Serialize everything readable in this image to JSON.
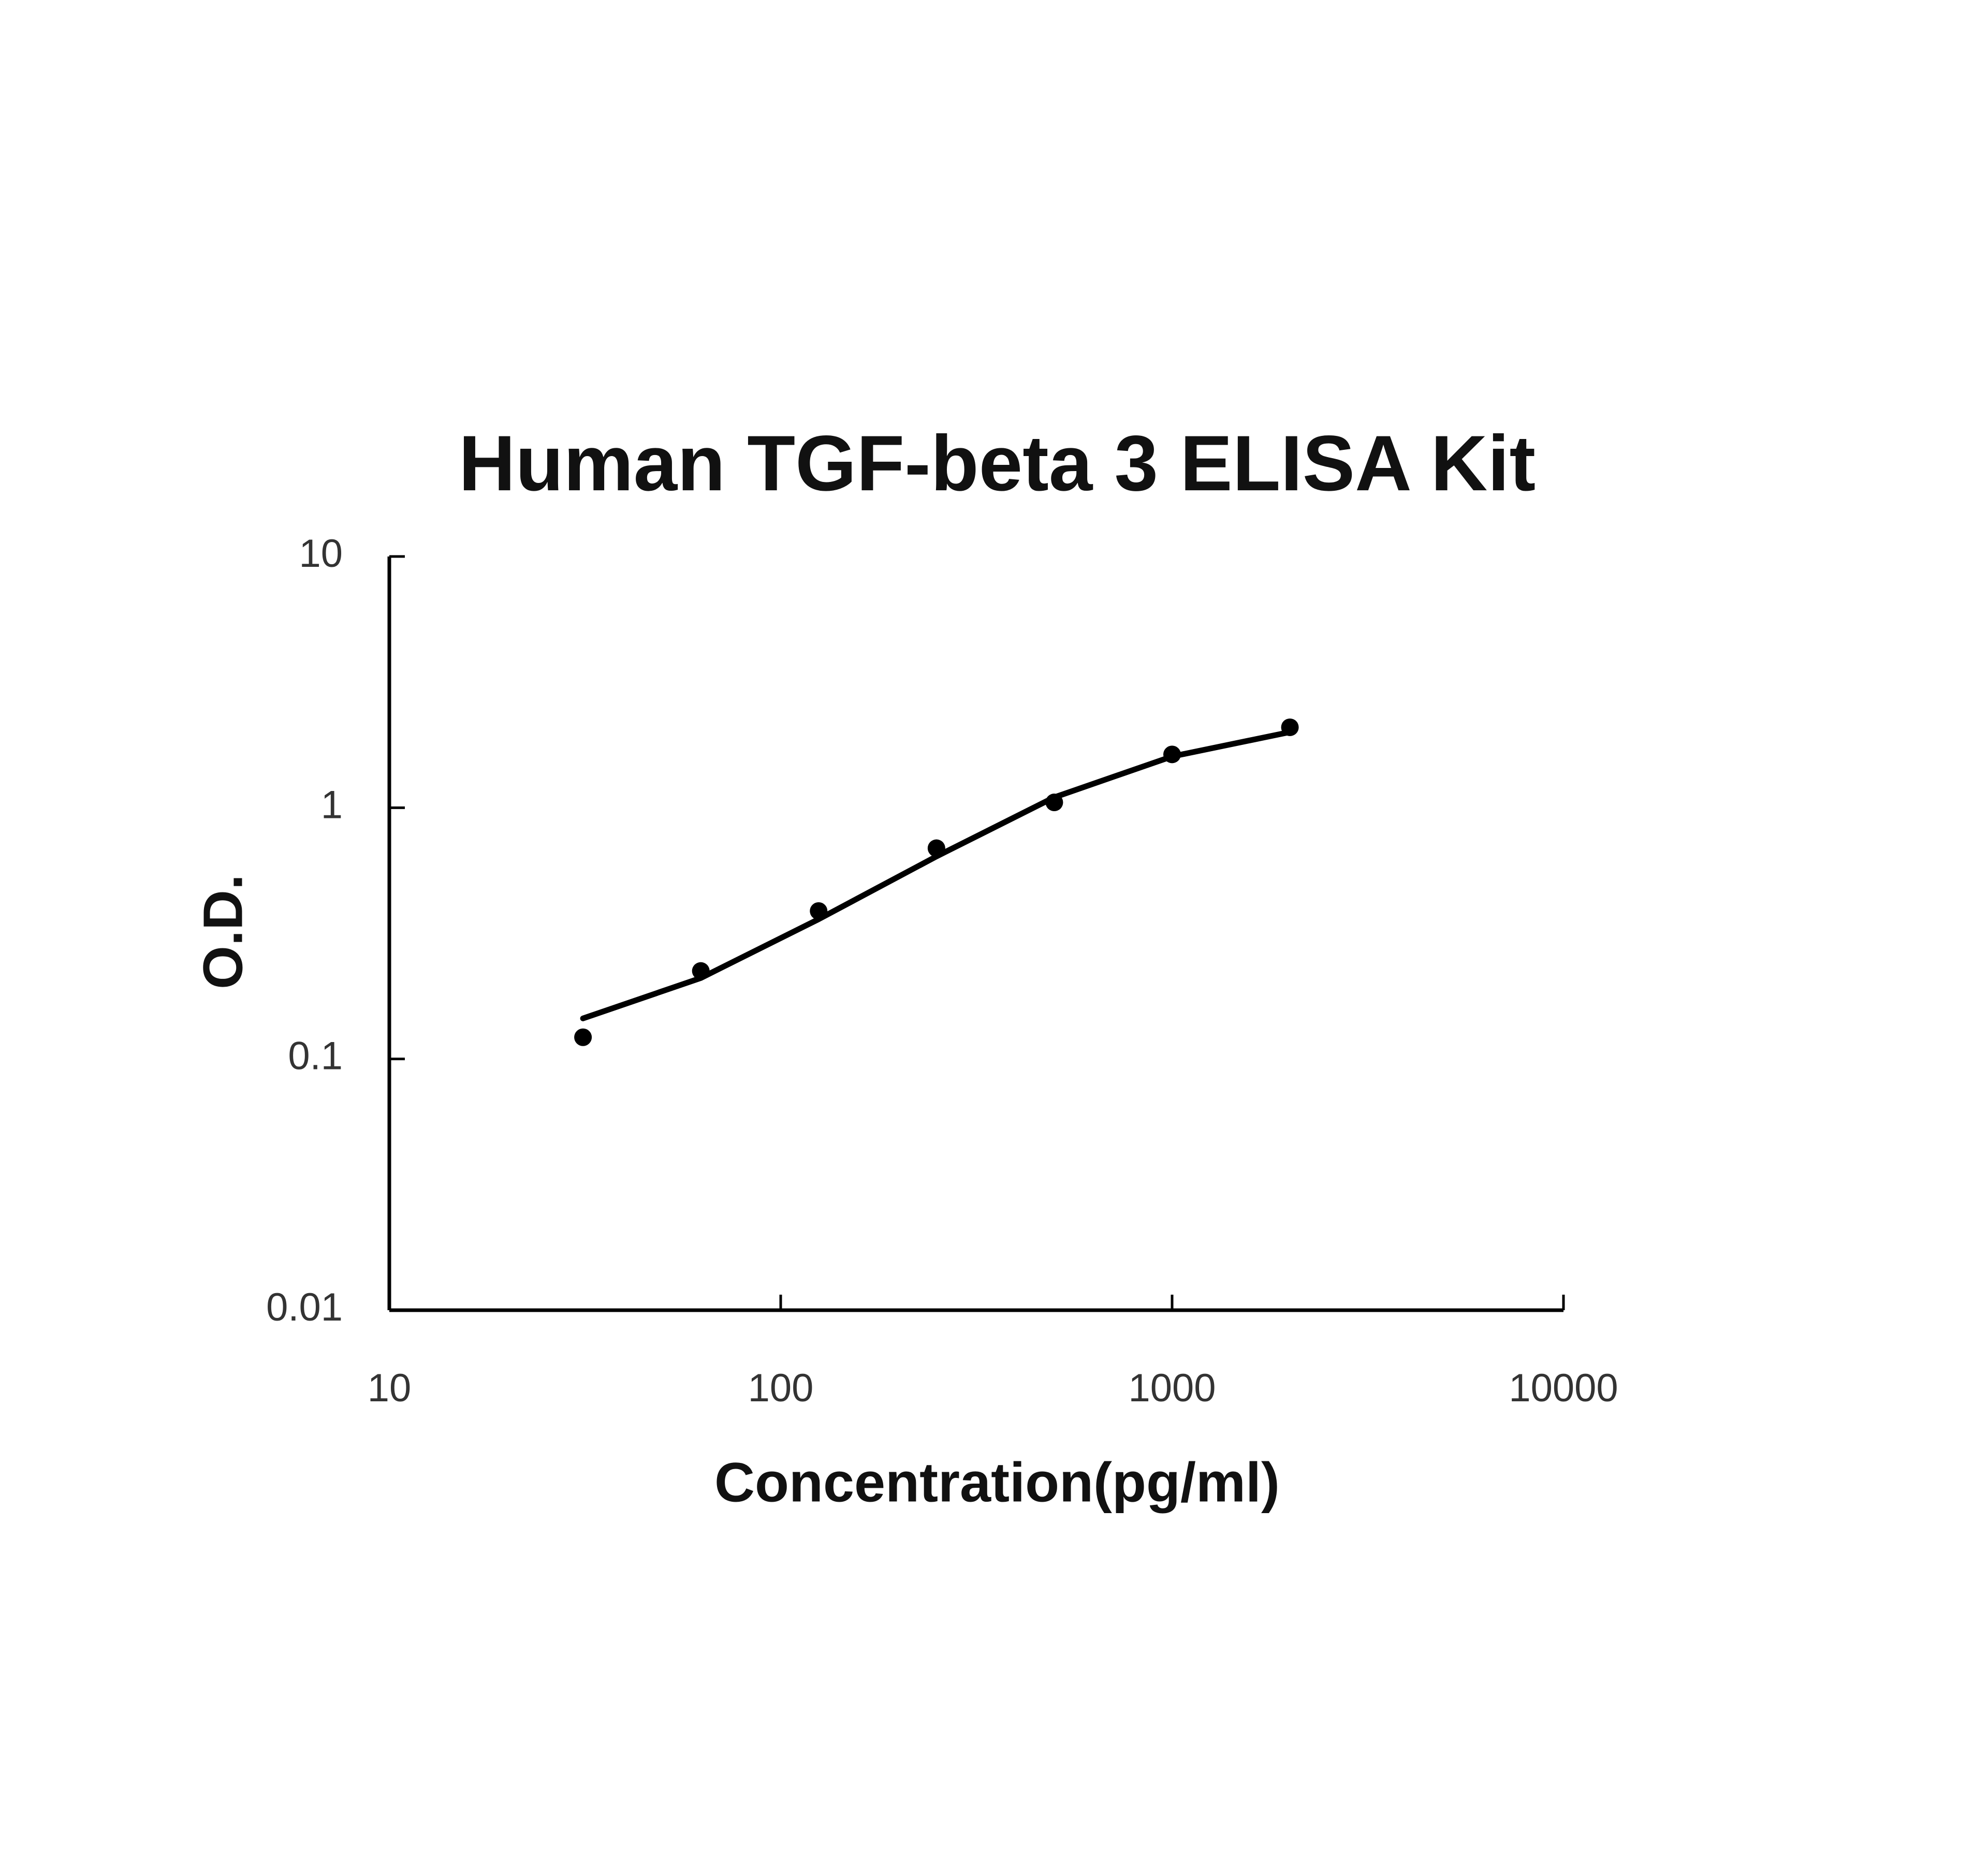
{
  "chart_data": {
    "type": "scatter",
    "title": "Human TGF-beta 3 ELISA Kit",
    "x_label": "Concentration(pg/ml)",
    "y_label": "O.D.",
    "x_log": true,
    "y_log": true,
    "xlim": [
      10,
      10000
    ],
    "xticks": [
      10,
      100,
      1000,
      10000
    ],
    "ylim": [
      0.01,
      10
    ],
    "yticks": [
      0.01,
      0.1,
      1,
      10
    ],
    "series": [
      {
        "style": "markers",
        "color": "#000000",
        "x": [
          31.25,
          62.5,
          125,
          250,
          500,
          1000,
          2000
        ],
        "values": [
          0.122,
          0.224,
          0.388,
          0.69,
          1.05,
          1.63,
          2.09
        ]
      },
      {
        "style": "line",
        "color": "#000000",
        "x": [
          31.25,
          62.5,
          125,
          250,
          500,
          1000,
          2000
        ],
        "values": [
          0.145,
          0.21,
          0.36,
          0.64,
          1.1,
          1.6,
          2.0
        ]
      }
    ]
  }
}
